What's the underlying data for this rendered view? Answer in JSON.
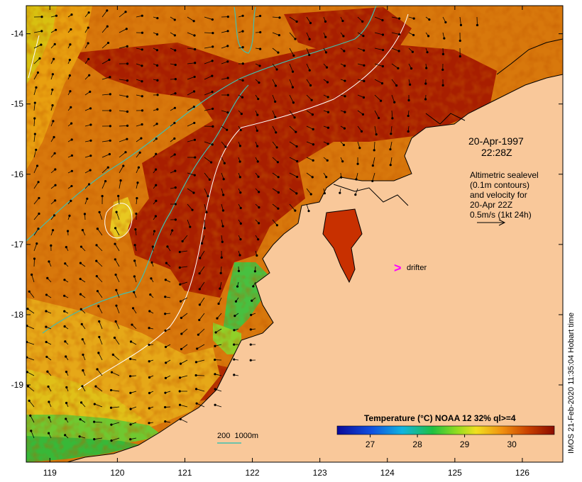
{
  "map": {
    "date": "20-Apr-1997",
    "time": "22:28Z",
    "legend_lines": [
      "Altimetric sealevel",
      "(0.1m contours)",
      "and velocity for",
      "20-Apr 22Z",
      "0.5m/s (1kt 24h)"
    ],
    "drifter_marker": ">",
    "drifter_label": "drifter",
    "isobath_label": "200  1000m",
    "colorbar": {
      "title": "Temperature (°C) NOAA 12 32% ql>=4",
      "ticks": [
        "27",
        "28",
        "29",
        "30"
      ],
      "range": [
        26.3,
        30.9
      ]
    },
    "x_ticks": [
      "119",
      "120",
      "121",
      "122",
      "123",
      "124",
      "125",
      "126"
    ],
    "y_ticks": [
      "-14",
      "-15",
      "-16",
      "-17",
      "-18",
      "-19"
    ],
    "lon_range": [
      118.65,
      126.6
    ],
    "lat_range": [
      -13.6,
      -20.1
    ],
    "credit": "IMOS 21-Feb-2020 11:35:04 Hobart time",
    "colors": {
      "land": "#f9c89a",
      "warm": "#a81e00",
      "mid": "#d4700a",
      "cool": "#f0c800",
      "cold": "#30c030",
      "isobath": "#40c0b0",
      "contour": "#ffffff",
      "drifter": "#ff00ff"
    }
  }
}
